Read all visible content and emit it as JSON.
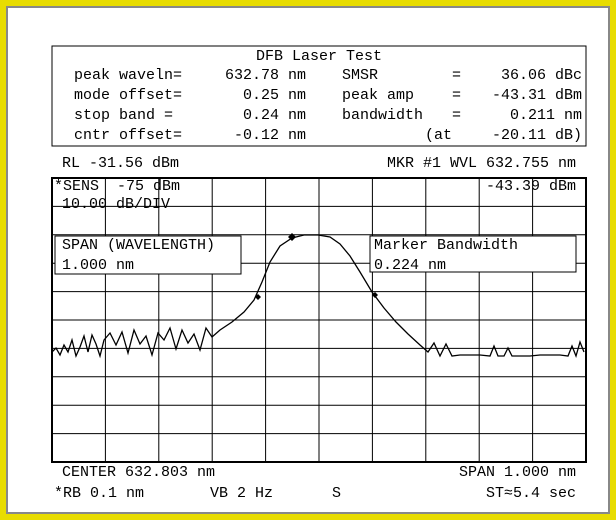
{
  "header": {
    "title": "DFB Laser Test",
    "rows": [
      {
        "label": "peak waveln=",
        "value": "632.78 nm",
        "label2": "SMSR",
        "eq": "=",
        "value2": "36.06 dBc"
      },
      {
        "label": "mode offset=",
        "value": "0.25 nm",
        "label2": "peak amp",
        "eq": "=",
        "value2": "-43.31 dBm"
      },
      {
        "label": "stop band =",
        "value": "0.24 nm",
        "label2": "bandwidth",
        "eq": "=",
        "value2": "0.211 nm"
      },
      {
        "label": "cntr offset=",
        "value": "-0.12 nm",
        "label2": "(at",
        "value2": "-20.11 dB)"
      }
    ]
  },
  "screen": {
    "reference": "RL -31.56 dBm",
    "marker": "MKR #1 WVL 632.755 nm",
    "sensitivity": "*SENS  -75 dBm",
    "scale": "10.00 dB/DIV",
    "marker_amplitude": "-43.39 dBm",
    "span_box": {
      "title": "SPAN (WAVELENGTH)",
      "value": "1.000 nm"
    },
    "bandwidth_box": {
      "title": "Marker Bandwidth",
      "value": "0.224 nm"
    }
  },
  "footer": {
    "center": "CENTER 632.803 nm",
    "span": "SPAN 1.000 nm",
    "resolution": "*RB 0.1 nm",
    "video_bandwidth": "VB 2 Hz",
    "mode": "S",
    "sweep_time": "ST≈5.4 sec"
  }
}
